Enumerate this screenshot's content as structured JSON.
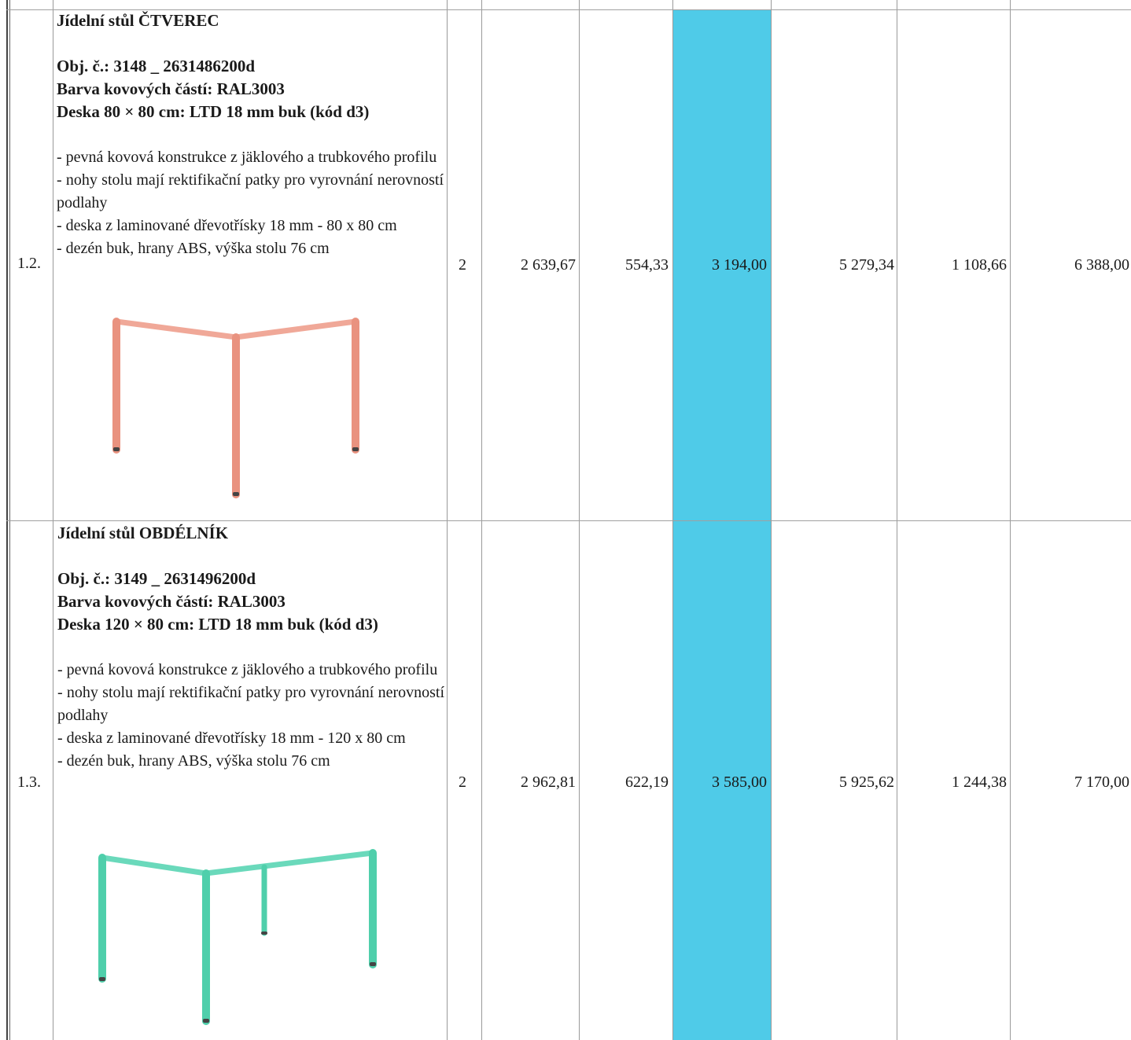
{
  "rows": [
    {
      "number": "1.2.",
      "title": "Jídelní stůl ČTVEREC",
      "order_no": "Obj. č.: 3148 _ 2631486200d",
      "color": "Barva kovových částí: RAL3003",
      "board": "Deska 80 × 80 cm: LTD 18 mm buk (kód d3)",
      "features": [
        "- pevná kovová konstrukce z jäklového a trubkového profilu",
        "- nohy stolu mají rektifikační patky pro vyrovnání nerovností podlahy",
        "- deska z laminované dřevotřísky 18 mm - 80 x 80 cm",
        "- dezén buk, hrany ABS, výška stolu 76 cm"
      ],
      "quantity": "2",
      "unit_price": "2 639,67",
      "vat": "554,33",
      "unit_total": "3 194,00",
      "sum": "5 279,34",
      "sum_vat": "1 108,66",
      "grand_total": "6 388,00",
      "frame_color": "#e9927f",
      "image_icon": "square-table-illustration"
    },
    {
      "number": "1.3.",
      "title": "Jídelní stůl OBDÉLNÍK",
      "order_no": "Obj. č.: 3149 _ 2631496200d",
      "color": "Barva kovových částí: RAL3003",
      "board": "Deska 120 × 80 cm: LTD 18 mm buk (kód d3)",
      "features": [
        "- pevná kovová konstrukce z jäklového a trubkového profilu",
        "- nohy stolu mají rektifikační patky pro vyrovnání nerovností podlahy",
        "- deska z laminované dřevotřísky 18 mm - 120 x 80 cm",
        "- dezén buk, hrany ABS, výška stolu 76 cm"
      ],
      "quantity": "2",
      "unit_price": "2 962,81",
      "vat": "622,19",
      "unit_total": "3 585,00",
      "sum": "5 925,62",
      "sum_vat": "1 244,38",
      "grand_total": "7 170,00",
      "frame_color": "#4fcfab",
      "image_icon": "rectangle-table-illustration"
    }
  ],
  "highlight_color": "#4fcbe8"
}
